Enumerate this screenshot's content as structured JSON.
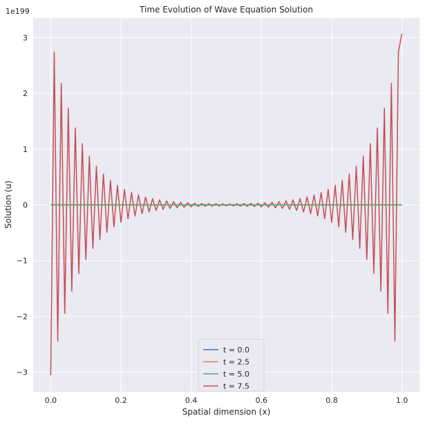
{
  "chart_data": {
    "type": "line",
    "title": "Time Evolution of Wave Equation Solution",
    "xlabel": "Spatial dimension (x)",
    "ylabel": "Solution (u)",
    "y_offset_label": "1e199",
    "xlim": [
      -0.05,
      1.05
    ],
    "ylim": [
      -3.35,
      3.35
    ],
    "x_ticks": [
      0.0,
      0.2,
      0.4,
      0.6,
      0.8,
      1.0
    ],
    "x_tick_labels": [
      "0.0",
      "0.2",
      "0.4",
      "0.6",
      "0.8",
      "1.0"
    ],
    "y_ticks": [
      -3,
      -2,
      -1,
      0,
      1,
      2,
      3
    ],
    "y_tick_labels": [
      "−3",
      "−2",
      "−1",
      "0",
      "1",
      "2",
      "3"
    ],
    "grid": true,
    "legend_position": "lower-center",
    "x_grid": {
      "start": 0,
      "stop": 1,
      "points": 101
    },
    "series": [
      {
        "name": "t = 0.0",
        "color": "#4c72b0",
        "constant": 0
      },
      {
        "name": "t = 2.5",
        "color": "#dd8452",
        "constant": 0
      },
      {
        "name": "t = 5.0",
        "color": "#55a868",
        "constant": 0
      },
      {
        "name": "t = 7.5",
        "color": "#c44e52",
        "alternating": true,
        "envelope_decay": 0.0875,
        "end_values": [
          -3.05,
          3.07
        ]
      }
    ]
  }
}
